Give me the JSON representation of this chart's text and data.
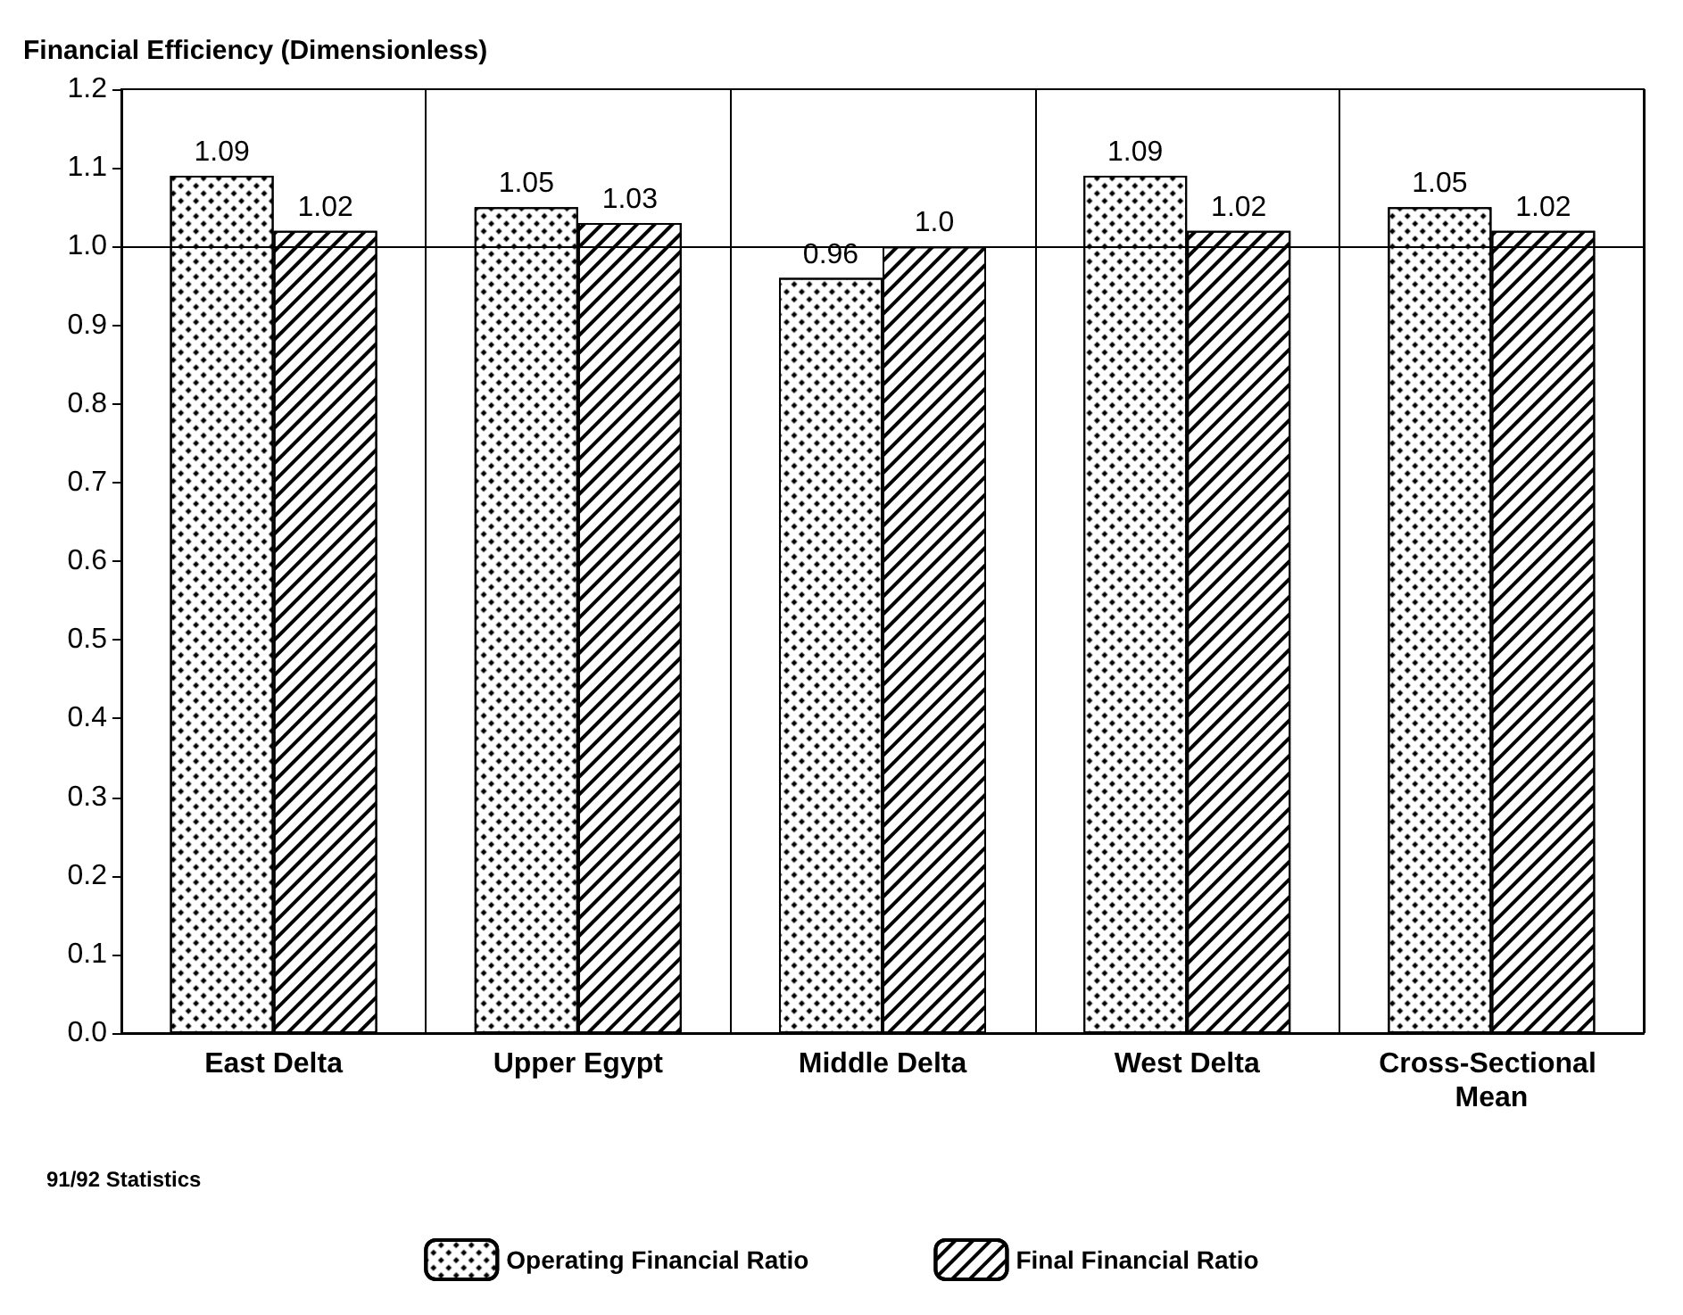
{
  "chart_data": {
    "type": "bar",
    "ylabel": "Financial Efficiency (Dimensionless)",
    "categories": [
      "East Delta",
      "Upper Egypt",
      "Middle Delta",
      "West Delta",
      "Cross-Sectional Mean"
    ],
    "series": [
      {
        "name": "Operating Financial Ratio",
        "color": "#ffffff",
        "values": [
          1.09,
          1.05,
          0.96,
          1.09,
          1.05
        ],
        "value_labels": [
          "1.09",
          "1.05",
          "0.96",
          "1.09",
          "1.05"
        ]
      },
      {
        "name": "Final Financial Ratio",
        "color": "#ffffff",
        "values": [
          1.02,
          1.03,
          1.0,
          1.02,
          1.02
        ],
        "value_labels": [
          "1.02",
          "1.03",
          "1.0",
          "1.02",
          "1.02"
        ]
      }
    ],
    "ylim": [
      0,
      1.2
    ],
    "yticks": [
      {
        "value": 0,
        "label": "0.0"
      },
      {
        "value": 0.1,
        "label": "0.1"
      },
      {
        "value": 0.2,
        "label": "0.2"
      },
      {
        "value": 0.3,
        "label": "0.3"
      },
      {
        "value": 0.4,
        "label": "0.4"
      },
      {
        "value": 0.5,
        "label": "0.5"
      },
      {
        "value": 0.6,
        "label": "0.6"
      },
      {
        "value": 0.7,
        "label": "0.7"
      },
      {
        "value": 0.8,
        "label": "0.8"
      },
      {
        "value": 0.9,
        "label": "0.9"
      },
      {
        "value": 1,
        "label": "1.0"
      },
      {
        "value": 1.1,
        "label": "1.1"
      },
      {
        "value": 1.2,
        "label": "1.2"
      }
    ],
    "ref_lines": [
      {
        "axis": "y",
        "value": 1,
        "color": "#000000"
      }
    ],
    "grid": "x",
    "legend": "bottom",
    "annotations": [
      "91/92 Statistics"
    ]
  }
}
